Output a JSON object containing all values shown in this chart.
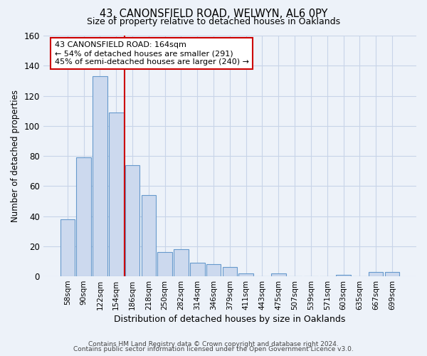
{
  "title1": "43, CANONSFIELD ROAD, WELWYN, AL6 0PY",
  "title2": "Size of property relative to detached houses in Oaklands",
  "xlabel": "Distribution of detached houses by size in Oaklands",
  "ylabel": "Number of detached properties",
  "bar_labels": [
    "58sqm",
    "90sqm",
    "122sqm",
    "154sqm",
    "186sqm",
    "218sqm",
    "250sqm",
    "282sqm",
    "314sqm",
    "346sqm",
    "379sqm",
    "411sqm",
    "443sqm",
    "475sqm",
    "507sqm",
    "539sqm",
    "571sqm",
    "603sqm",
    "635sqm",
    "667sqm",
    "699sqm"
  ],
  "bar_values": [
    38,
    79,
    133,
    109,
    74,
    54,
    16,
    18,
    9,
    8,
    6,
    2,
    0,
    2,
    0,
    0,
    0,
    1,
    0,
    3,
    3
  ],
  "bar_color": "#ccd9ee",
  "bar_edge_color": "#6699cc",
  "grid_color": "#c8d4e8",
  "background_color": "#edf2f9",
  "vline_x": 3.5,
  "vline_color": "#cc0000",
  "annotation_line1": "43 CANONSFIELD ROAD: 164sqm",
  "annotation_line2": "← 54% of detached houses are smaller (291)",
  "annotation_line3": "45% of semi-detached houses are larger (240) →",
  "annotation_box_color": "white",
  "annotation_box_edge": "#cc0000",
  "footer1": "Contains HM Land Registry data © Crown copyright and database right 2024.",
  "footer2": "Contains public sector information licensed under the Open Government Licence v3.0.",
  "ylim": [
    0,
    160
  ],
  "yticks": [
    0,
    20,
    40,
    60,
    80,
    100,
    120,
    140,
    160
  ]
}
